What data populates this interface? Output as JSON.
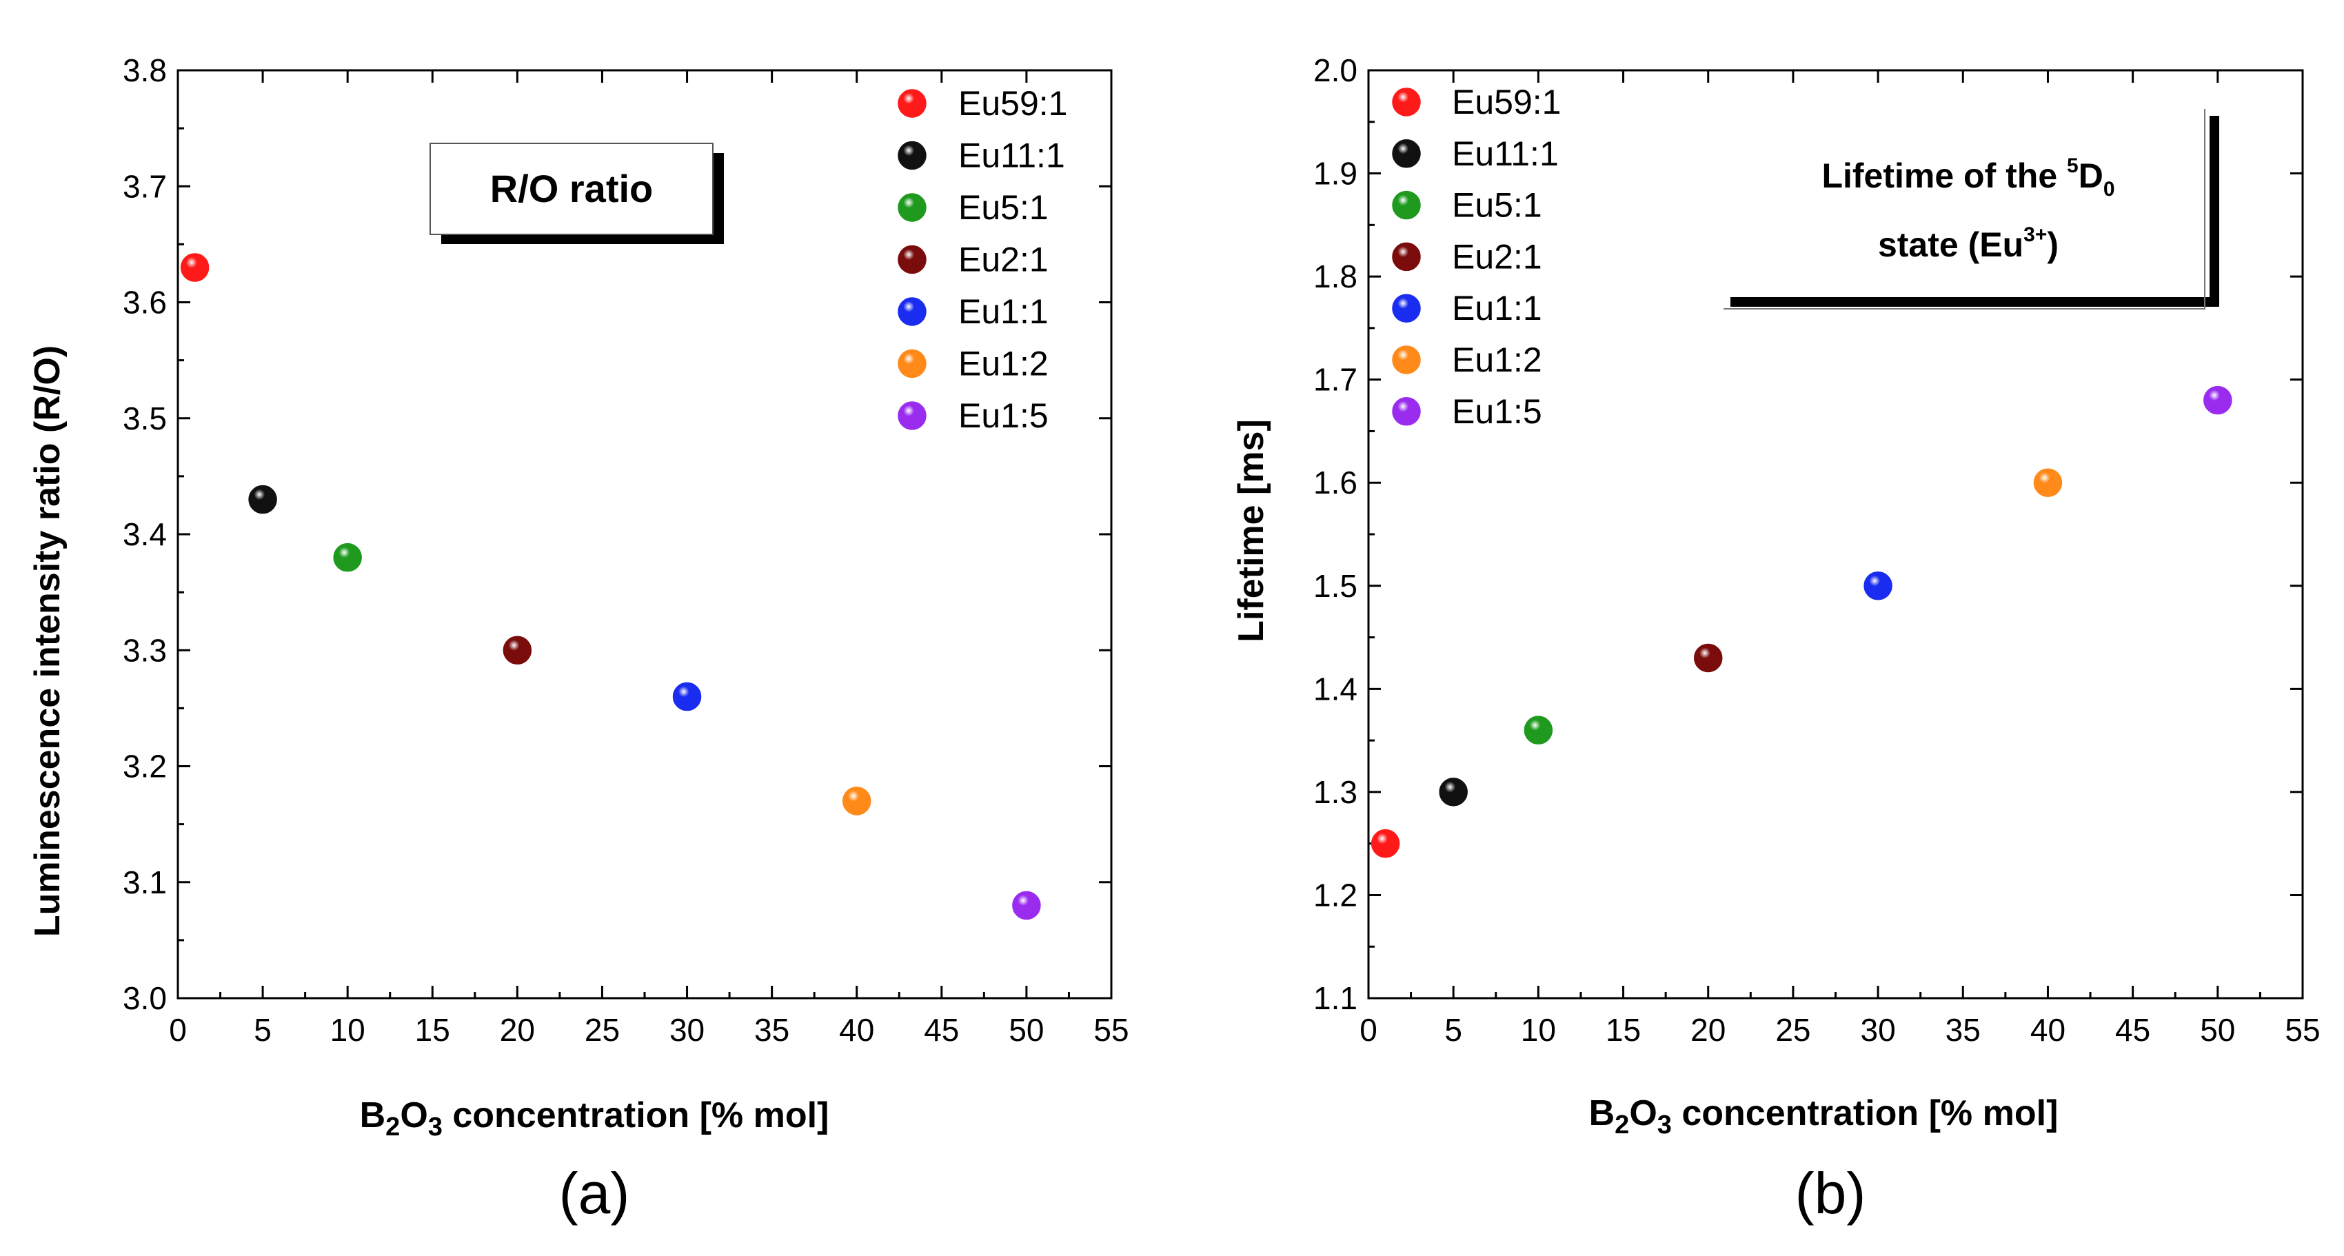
{
  "chart_data": [
    {
      "type": "scatter",
      "panel_label": "(a)",
      "ylabel": "Luminescence intensity ratio (R/O)",
      "xlabel": {
        "pre": "B",
        "sub1": "2",
        "mid": "O",
        "sub2": "3",
        "post": " concentration [% mol]"
      },
      "xlim": [
        0,
        55
      ],
      "ylim": [
        3.0,
        3.8
      ],
      "xticks": [
        "0",
        "5",
        "10",
        "15",
        "20",
        "25",
        "30",
        "35",
        "40",
        "45",
        "50",
        "55"
      ],
      "yticks": [
        "3.0",
        "3.1",
        "3.2",
        "3.3",
        "3.4",
        "3.5",
        "3.6",
        "3.7",
        "3.8"
      ],
      "annotation": {
        "text": "R/O ratio"
      },
      "series": [
        {
          "name": "Eu59:1",
          "color": "#ff1a1a",
          "x": 1,
          "y": 3.63
        },
        {
          "name": "Eu11:1",
          "color": "#111111",
          "x": 5,
          "y": 3.43
        },
        {
          "name": "Eu5:1",
          "color": "#1f9a1f",
          "x": 10,
          "y": 3.38
        },
        {
          "name": "Eu2:1",
          "color": "#7a0c0c",
          "x": 20,
          "y": 3.3
        },
        {
          "name": "Eu1:1",
          "color": "#1a2cf0",
          "x": 30,
          "y": 3.26
        },
        {
          "name": "Eu1:2",
          "color": "#ff8a1a",
          "x": 40,
          "y": 3.17
        },
        {
          "name": "Eu1:5",
          "color": "#9a2cf0",
          "x": 50,
          "y": 3.08
        }
      ]
    },
    {
      "type": "scatter",
      "panel_label": "(b)",
      "ylabel": "Lifetime [ms]",
      "xlabel": {
        "pre": "B",
        "sub1": "2",
        "mid": "O",
        "sub2": "3",
        "post": " concentration [% mol]"
      },
      "xlim": [
        0,
        55
      ],
      "ylim": [
        1.1,
        2.0
      ],
      "xticks": [
        "0",
        "5",
        "10",
        "15",
        "20",
        "25",
        "30",
        "35",
        "40",
        "45",
        "50",
        "55"
      ],
      "yticks": [
        "1.1",
        "1.2",
        "1.3",
        "1.4",
        "1.5",
        "1.6",
        "1.7",
        "1.8",
        "1.9",
        "2.0"
      ],
      "annotation": {
        "line1_pre": "Lifetime of the ",
        "line1_sup": "5",
        "line1_main": "D",
        "line1_sub": "0",
        "line2_pre": "state (Eu",
        "line2_sup": "3+",
        "line2_post": ")"
      },
      "series": [
        {
          "name": "Eu59:1",
          "color": "#ff1a1a",
          "x": 1,
          "y": 1.25
        },
        {
          "name": "Eu11:1",
          "color": "#111111",
          "x": 5,
          "y": 1.3
        },
        {
          "name": "Eu5:1",
          "color": "#1f9a1f",
          "x": 10,
          "y": 1.36
        },
        {
          "name": "Eu2:1",
          "color": "#7a0c0c",
          "x": 20,
          "y": 1.43
        },
        {
          "name": "Eu1:1",
          "color": "#1a2cf0",
          "x": 30,
          "y": 1.5
        },
        {
          "name": "Eu1:2",
          "color": "#ff8a1a",
          "x": 40,
          "y": 1.6
        },
        {
          "name": "Eu1:5",
          "color": "#9a2cf0",
          "x": 50,
          "y": 1.68
        }
      ]
    }
  ]
}
